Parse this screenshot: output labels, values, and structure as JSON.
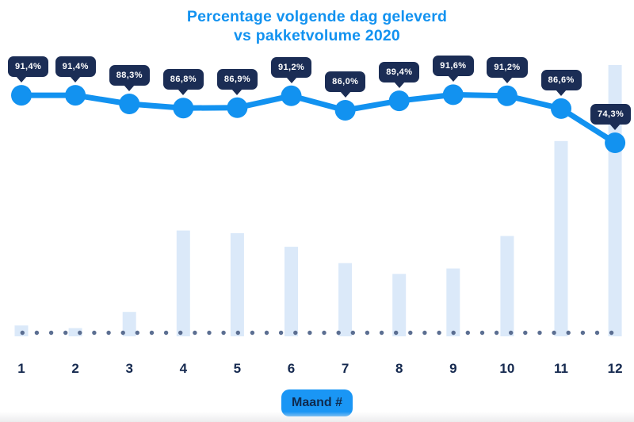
{
  "title": {
    "line1": "Percentage volgende dag geleverd",
    "line2": "vs pakketvolume 2020"
  },
  "x_axis_label_badge": "Maand #",
  "colors": {
    "title_blue": "#1292f0",
    "line_blue": "#1292f0",
    "marker_blue": "#1292f0",
    "tooltip_navy": "#1b2d55",
    "tooltip_text": "#ffffff",
    "bar_light_blue": "#dbe9f9",
    "baseline_dot_slate": "#5b6e91",
    "axis_label_navy": "#15294f",
    "xlabel_badge_blue": "#1a96f5",
    "xlabel_badge_text": "#0f2a4e",
    "background": "#ffffff"
  },
  "chart_data": {
    "type": "line+bar combo",
    "title": "Percentage volgende dag geleverd vs pakketvolume 2020",
    "categories": [
      "1",
      "2",
      "3",
      "4",
      "5",
      "6",
      "7",
      "8",
      "9",
      "10",
      "11",
      "12"
    ],
    "xlabel": "Maand #",
    "legend": "none",
    "grid": "off",
    "baseline_style": "dotted",
    "series": [
      {
        "name": "Percentage volgende dag geleverd",
        "type": "line",
        "unit": "%",
        "values": [
          91.4,
          91.4,
          88.3,
          86.8,
          86.9,
          91.2,
          86.0,
          89.4,
          91.6,
          91.2,
          86.6,
          74.3
        ],
        "point_labels": [
          "91,4%",
          "91,4%",
          "88,3%",
          "86,8%",
          "86,9%",
          "91,2%",
          "86,0%",
          "89,4%",
          "91,6%",
          "91,2%",
          "86,6%",
          "74,3%"
        ],
        "ylim": [
          70,
          95
        ]
      },
      {
        "name": "Pakketvolume 2020",
        "type": "bar",
        "unit": "relative index, estimated from bar heights (max month = 100)",
        "values": [
          4,
          3,
          9,
          39,
          38,
          33,
          27,
          23,
          25,
          37,
          72,
          100
        ],
        "ylim": [
          0,
          100
        ]
      }
    ]
  }
}
